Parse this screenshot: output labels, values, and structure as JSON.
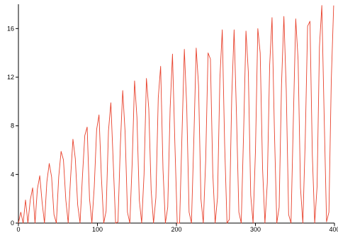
{
  "chart_data": {
    "type": "line",
    "title": "",
    "xlabel": "",
    "ylabel": "",
    "xlim": [
      0,
      400
    ],
    "ylim": [
      0,
      18
    ],
    "x_ticks": [
      0,
      100,
      200,
      300,
      400
    ],
    "x_tick_labels": [
      "0",
      "100",
      "200",
      "300",
      "400"
    ],
    "y_ticks": [
      0,
      4,
      8,
      12,
      16
    ],
    "y_tick_labels": [
      "0",
      "4",
      "8",
      "12",
      "16"
    ],
    "grid": false,
    "legend": "none",
    "line_color": "#e8412c",
    "series": [
      {
        "x": [
          0,
          3,
          6,
          9,
          12,
          15,
          18,
          21,
          24,
          27,
          30,
          33,
          36,
          39,
          42,
          45,
          48,
          51,
          54,
          57,
          60,
          63,
          66,
          69,
          72,
          75,
          78,
          81,
          84,
          87,
          90,
          93,
          96,
          99,
          102,
          105,
          108,
          111,
          114,
          117,
          120,
          123,
          126,
          129,
          132,
          135,
          138,
          141,
          144,
          147,
          150,
          153,
          156,
          159,
          162,
          165,
          168,
          171,
          174,
          177,
          180,
          183,
          186,
          189,
          192,
          195,
          198,
          201,
          204,
          207,
          210,
          213,
          216,
          219,
          222,
          225,
          228,
          231,
          234,
          237,
          240,
          243,
          246,
          249,
          252,
          255,
          258,
          261,
          264,
          267,
          270,
          273,
          276,
          279,
          282,
          285,
          288,
          291,
          294,
          297,
          300,
          303,
          306,
          309,
          312,
          315,
          318,
          321,
          324,
          327,
          330,
          333,
          336,
          339,
          342,
          345,
          348,
          351,
          354,
          357,
          360,
          363,
          366,
          369,
          372,
          375,
          378,
          381,
          384,
          387,
          390,
          393,
          396,
          399
        ],
        "y": [
          0.0,
          0.9,
          0.0,
          1.9,
          0.0,
          1.9,
          2.9,
          0.0,
          2.8,
          3.9,
          1.7,
          0.0,
          3.4,
          4.9,
          3.8,
          0.7,
          0.0,
          3.8,
          5.9,
          5.2,
          1.9,
          0.0,
          3.7,
          6.9,
          5.3,
          1.5,
          0.0,
          3.8,
          7.2,
          7.9,
          2.0,
          0.0,
          3.0,
          7.7,
          8.9,
          3.8,
          0.0,
          1.0,
          7.6,
          9.9,
          5.0,
          0.0,
          0.1,
          6.4,
          10.9,
          7.5,
          0.9,
          0.0,
          5.0,
          11.7,
          8.7,
          1.9,
          0.0,
          4.0,
          11.9,
          9.4,
          2.7,
          0.0,
          2.1,
          10.3,
          12.9,
          4.4,
          0.0,
          1.3,
          9.4,
          13.9,
          6.6,
          0.0,
          0.0,
          7.2,
          14.3,
          9.6,
          0.9,
          0.0,
          6.8,
          14.4,
          11.3,
          2.0,
          0.0,
          5.1,
          14.0,
          13.5,
          4.1,
          0.0,
          2.1,
          11.9,
          15.9,
          6.5,
          0.0,
          0.3,
          10.4,
          15.9,
          8.9,
          0.9,
          0.0,
          7.4,
          15.8,
          12.4,
          2.3,
          0.0,
          5.9,
          16.0,
          14.0,
          4.5,
          0.0,
          3.3,
          13.0,
          16.9,
          7.6,
          0.0,
          1.3,
          11.4,
          17.0,
          10.9,
          0.7,
          0.0,
          8.6,
          16.8,
          13.4,
          2.9,
          0.0,
          6.8,
          16.2,
          16.6,
          5.6,
          0.0,
          3.0,
          14.5,
          17.9,
          8.7,
          0.1,
          0.9,
          11.8,
          17.9
        ]
      }
    ]
  }
}
